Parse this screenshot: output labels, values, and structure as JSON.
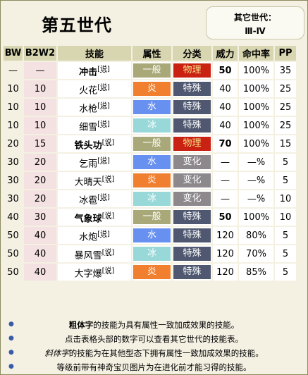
{
  "header": {
    "title": "第五世代",
    "other_gen_label": "其它世代：",
    "other_gen_link": "Ⅲ-Ⅳ"
  },
  "columns": [
    "BW",
    "B2W2",
    "技能",
    "属性",
    "分类",
    "威力",
    "命中率",
    "PP"
  ],
  "ref_mark": "[说]",
  "rows": [
    {
      "bw": "—",
      "b2w2": "—",
      "move": "冲击",
      "bold": true,
      "type": "一般",
      "type_key": "normal",
      "cat": "物理",
      "cat_key": "phys",
      "power": "50",
      "power_bold": true,
      "acc": "100%",
      "pp": "35"
    },
    {
      "bw": "10",
      "b2w2": "10",
      "move": "火花",
      "bold": false,
      "type": "炎",
      "type_key": "fire",
      "cat": "特殊",
      "cat_key": "spec",
      "power": "40",
      "power_bold": false,
      "acc": "100%",
      "pp": "25"
    },
    {
      "bw": "10",
      "b2w2": "10",
      "move": "水枪",
      "bold": false,
      "type": "水",
      "type_key": "water",
      "cat": "特殊",
      "cat_key": "spec",
      "power": "40",
      "power_bold": false,
      "acc": "100%",
      "pp": "25"
    },
    {
      "bw": "10",
      "b2w2": "10",
      "move": "细雪",
      "bold": false,
      "type": "冰",
      "type_key": "ice",
      "cat": "特殊",
      "cat_key": "spec",
      "power": "40",
      "power_bold": false,
      "acc": "100%",
      "pp": "25"
    },
    {
      "bw": "20",
      "b2w2": "15",
      "move": "铁头功",
      "bold": true,
      "type": "一般",
      "type_key": "normal",
      "cat": "物理",
      "cat_key": "phys",
      "power": "70",
      "power_bold": true,
      "acc": "100%",
      "pp": "15"
    },
    {
      "bw": "30",
      "b2w2": "20",
      "move": "乞雨",
      "bold": false,
      "type": "水",
      "type_key": "water",
      "cat": "变化",
      "cat_key": "stat",
      "power": "—",
      "power_bold": false,
      "acc": "—%",
      "pp": "5"
    },
    {
      "bw": "30",
      "b2w2": "20",
      "move": "大晴天",
      "bold": false,
      "type": "炎",
      "type_key": "fire",
      "cat": "变化",
      "cat_key": "stat",
      "power": "—",
      "power_bold": false,
      "acc": "—%",
      "pp": "5"
    },
    {
      "bw": "30",
      "b2w2": "20",
      "move": "冰雹",
      "bold": false,
      "type": "冰",
      "type_key": "ice",
      "cat": "变化",
      "cat_key": "stat",
      "power": "—",
      "power_bold": false,
      "acc": "—%",
      "pp": "10"
    },
    {
      "bw": "40",
      "b2w2": "30",
      "move": "气象球",
      "bold": true,
      "type": "一般",
      "type_key": "normal",
      "cat": "特殊",
      "cat_key": "spec",
      "power": "50",
      "power_bold": true,
      "acc": "100%",
      "pp": "10"
    },
    {
      "bw": "50",
      "b2w2": "40",
      "move": "水炮",
      "bold": false,
      "type": "水",
      "type_key": "water",
      "cat": "特殊",
      "cat_key": "spec",
      "power": "120",
      "power_bold": false,
      "acc": "80%",
      "pp": "5"
    },
    {
      "bw": "50",
      "b2w2": "40",
      "move": "暴风雪",
      "bold": false,
      "type": "冰",
      "type_key": "ice",
      "cat": "特殊",
      "cat_key": "spec",
      "power": "120",
      "power_bold": false,
      "acc": "70%",
      "pp": "5"
    },
    {
      "bw": "50",
      "b2w2": "40",
      "move": "大字爆",
      "bold": false,
      "type": "炎",
      "type_key": "fire",
      "cat": "特殊",
      "cat_key": "spec",
      "power": "120",
      "power_bold": false,
      "acc": "85%",
      "pp": "5"
    }
  ],
  "notes": [
    {
      "bold": "粗体字",
      "rest": "的技能为具有属性一致加成效果的技能。"
    },
    {
      "plain": "点击表格头部的数字可以查看其它世代的技能表。"
    },
    {
      "italic": "斜体字",
      "rest": "的技能为在其他型态下拥有属性一致加成效果的技能。"
    },
    {
      "plain": "等级前带有神奇宝贝图片为在进化前才能习得的技能。"
    }
  ],
  "colors": {
    "normal": "#a8a878",
    "fire": "#f08030",
    "water": "#6890f0",
    "ice": "#98d8d8",
    "physical": "#c92112",
    "special": "#4f5870",
    "status": "#8c888c",
    "header": "#d8d6b0"
  }
}
